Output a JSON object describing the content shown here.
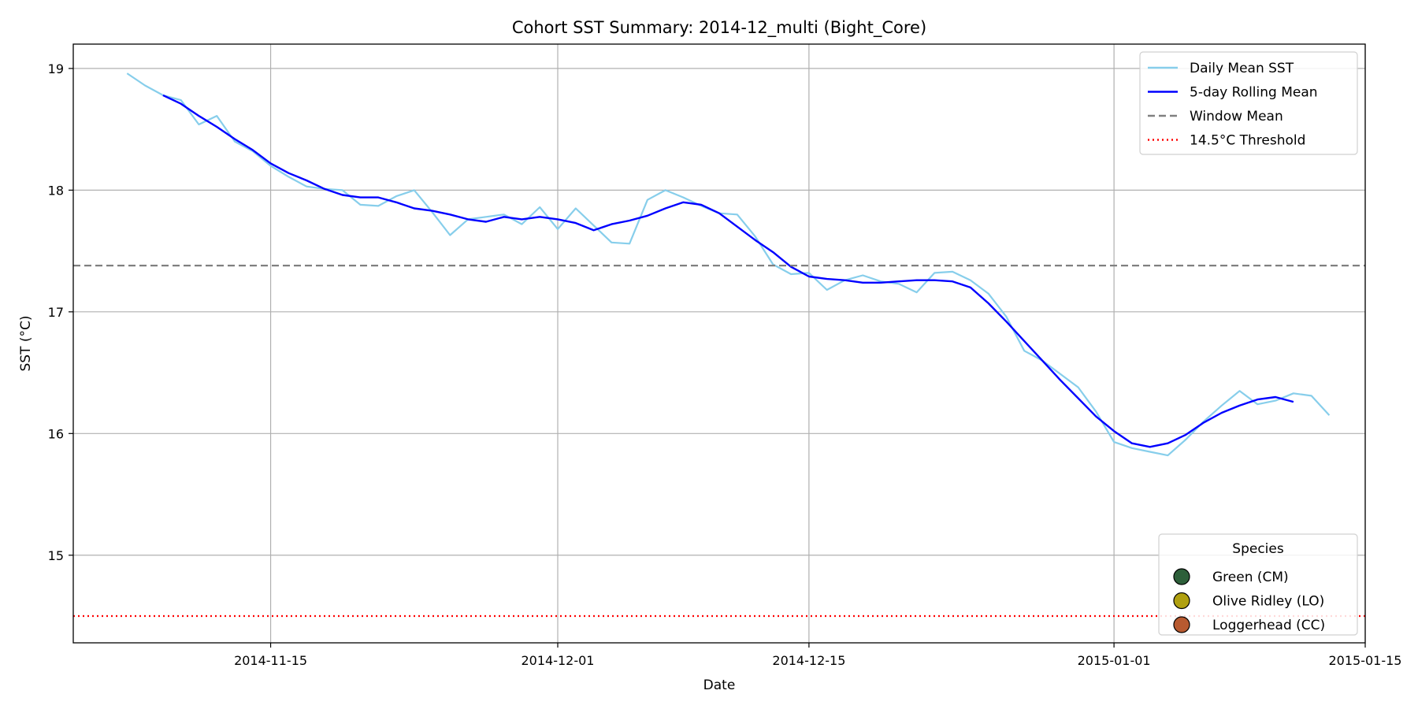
{
  "chart_data": {
    "type": "line",
    "title": "Cohort SST Summary: 2014-12_multi (Bight_Core)",
    "xlabel": "Date",
    "ylabel": "SST (°C)",
    "xlim": [
      "2014-11-04",
      "2015-01-15"
    ],
    "ylim": [
      14.28,
      19.2
    ],
    "x_ticks": [
      "2014-11-15",
      "2014-12-01",
      "2014-12-15",
      "2015-01-01",
      "2015-01-15"
    ],
    "y_ticks": [
      15,
      16,
      17,
      18,
      19
    ],
    "grid": true,
    "series": [
      {
        "name": "Daily Mean SST",
        "color": "#87ceeb",
        "style": "solid",
        "x_start": "2014-11-07",
        "values": [
          18.96,
          18.86,
          18.78,
          18.74,
          18.54,
          18.61,
          18.4,
          18.32,
          18.2,
          18.11,
          18.03,
          18.01,
          18.0,
          17.88,
          17.87,
          17.95,
          18.0,
          17.82,
          17.63,
          17.76,
          17.78,
          17.8,
          17.72,
          17.86,
          17.68,
          17.85,
          17.71,
          17.57,
          17.56,
          17.92,
          18.0,
          17.94,
          17.87,
          17.81,
          17.8,
          17.62,
          17.39,
          17.31,
          17.32,
          17.18,
          17.26,
          17.3,
          17.25,
          17.23,
          17.16,
          17.32,
          17.33,
          17.26,
          17.15,
          16.96,
          16.68,
          16.6,
          16.49,
          16.38,
          16.18,
          15.93,
          15.88,
          15.85,
          15.82,
          15.95,
          16.1,
          16.23,
          16.35,
          16.24,
          16.27,
          16.33,
          16.31,
          16.15
        ]
      },
      {
        "name": "5-day Rolling Mean",
        "color": "#0000ff",
        "style": "solid",
        "x_start": "2014-11-09",
        "values": [
          18.78,
          18.71,
          18.61,
          18.52,
          18.42,
          18.33,
          18.22,
          18.14,
          18.08,
          18.01,
          17.96,
          17.94,
          17.94,
          17.9,
          17.85,
          17.83,
          17.8,
          17.76,
          17.74,
          17.78,
          17.76,
          17.78,
          17.76,
          17.73,
          17.67,
          17.72,
          17.75,
          17.79,
          17.85,
          17.9,
          17.88,
          17.81,
          17.7,
          17.59,
          17.49,
          17.37,
          17.29,
          17.27,
          17.26,
          17.24,
          17.24,
          17.25,
          17.26,
          17.26,
          17.25,
          17.2,
          17.07,
          16.92,
          16.76,
          16.6,
          16.44,
          16.29,
          16.14,
          16.02,
          15.92,
          15.89,
          15.92,
          15.99,
          16.09,
          16.17,
          16.23,
          16.28,
          16.3,
          16.26
        ]
      },
      {
        "name": "Window Mean",
        "color": "#808080",
        "style": "dashed",
        "value": 17.38
      },
      {
        "name": "14.5°C Threshold",
        "color": "#ff0000",
        "style": "dotted",
        "value": 14.5
      }
    ],
    "legend": {
      "placement": "top-right"
    },
    "species_legend": {
      "title": "Species",
      "placement": "bottom-right",
      "items": [
        {
          "label": "Green (CM)",
          "color": "#2d5f3a"
        },
        {
          "label": "Olive Ridley (LO)",
          "color": "#b0a010"
        },
        {
          "label": "Loggerhead (CC)",
          "color": "#b85a30"
        }
      ]
    }
  }
}
